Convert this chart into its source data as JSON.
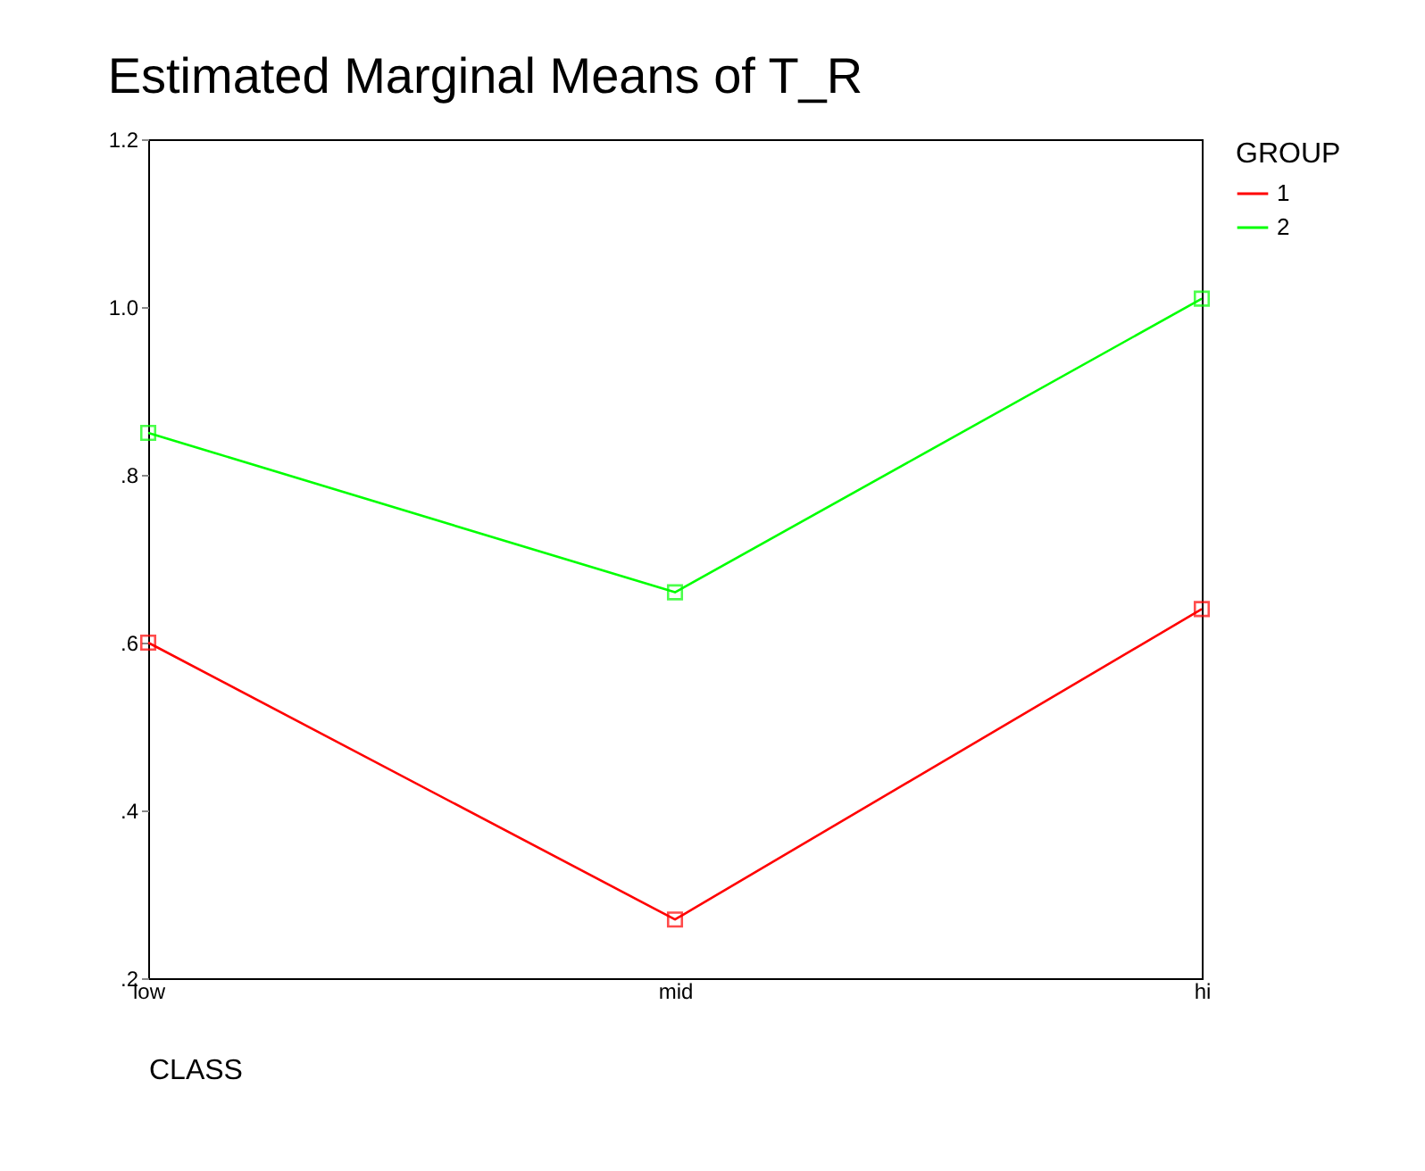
{
  "chart_data": {
    "type": "line",
    "title": "Estimated Marginal Means of T_R",
    "xlabel": "CLASS",
    "legend_title": "GROUP",
    "categories": [
      "low",
      "mid",
      "hi"
    ],
    "series": [
      {
        "name": "1",
        "color": "#ff0000",
        "values": [
          0.6,
          0.27,
          0.64
        ]
      },
      {
        "name": "2",
        "color": "#00ff00",
        "values": [
          0.85,
          0.66,
          1.01
        ]
      }
    ],
    "ylim": [
      0.2,
      1.2
    ],
    "yticks": [
      {
        "value": 0.2,
        "label": ".2"
      },
      {
        "value": 0.4,
        "label": ".4"
      },
      {
        "value": 0.6,
        "label": ".6"
      },
      {
        "value": 0.8,
        "label": ".8"
      },
      {
        "value": 1.0,
        "label": "1.0"
      },
      {
        "value": 1.2,
        "label": "1.2"
      }
    ],
    "grid": false,
    "legend": "right",
    "marker": "square",
    "line_style": "solid"
  }
}
